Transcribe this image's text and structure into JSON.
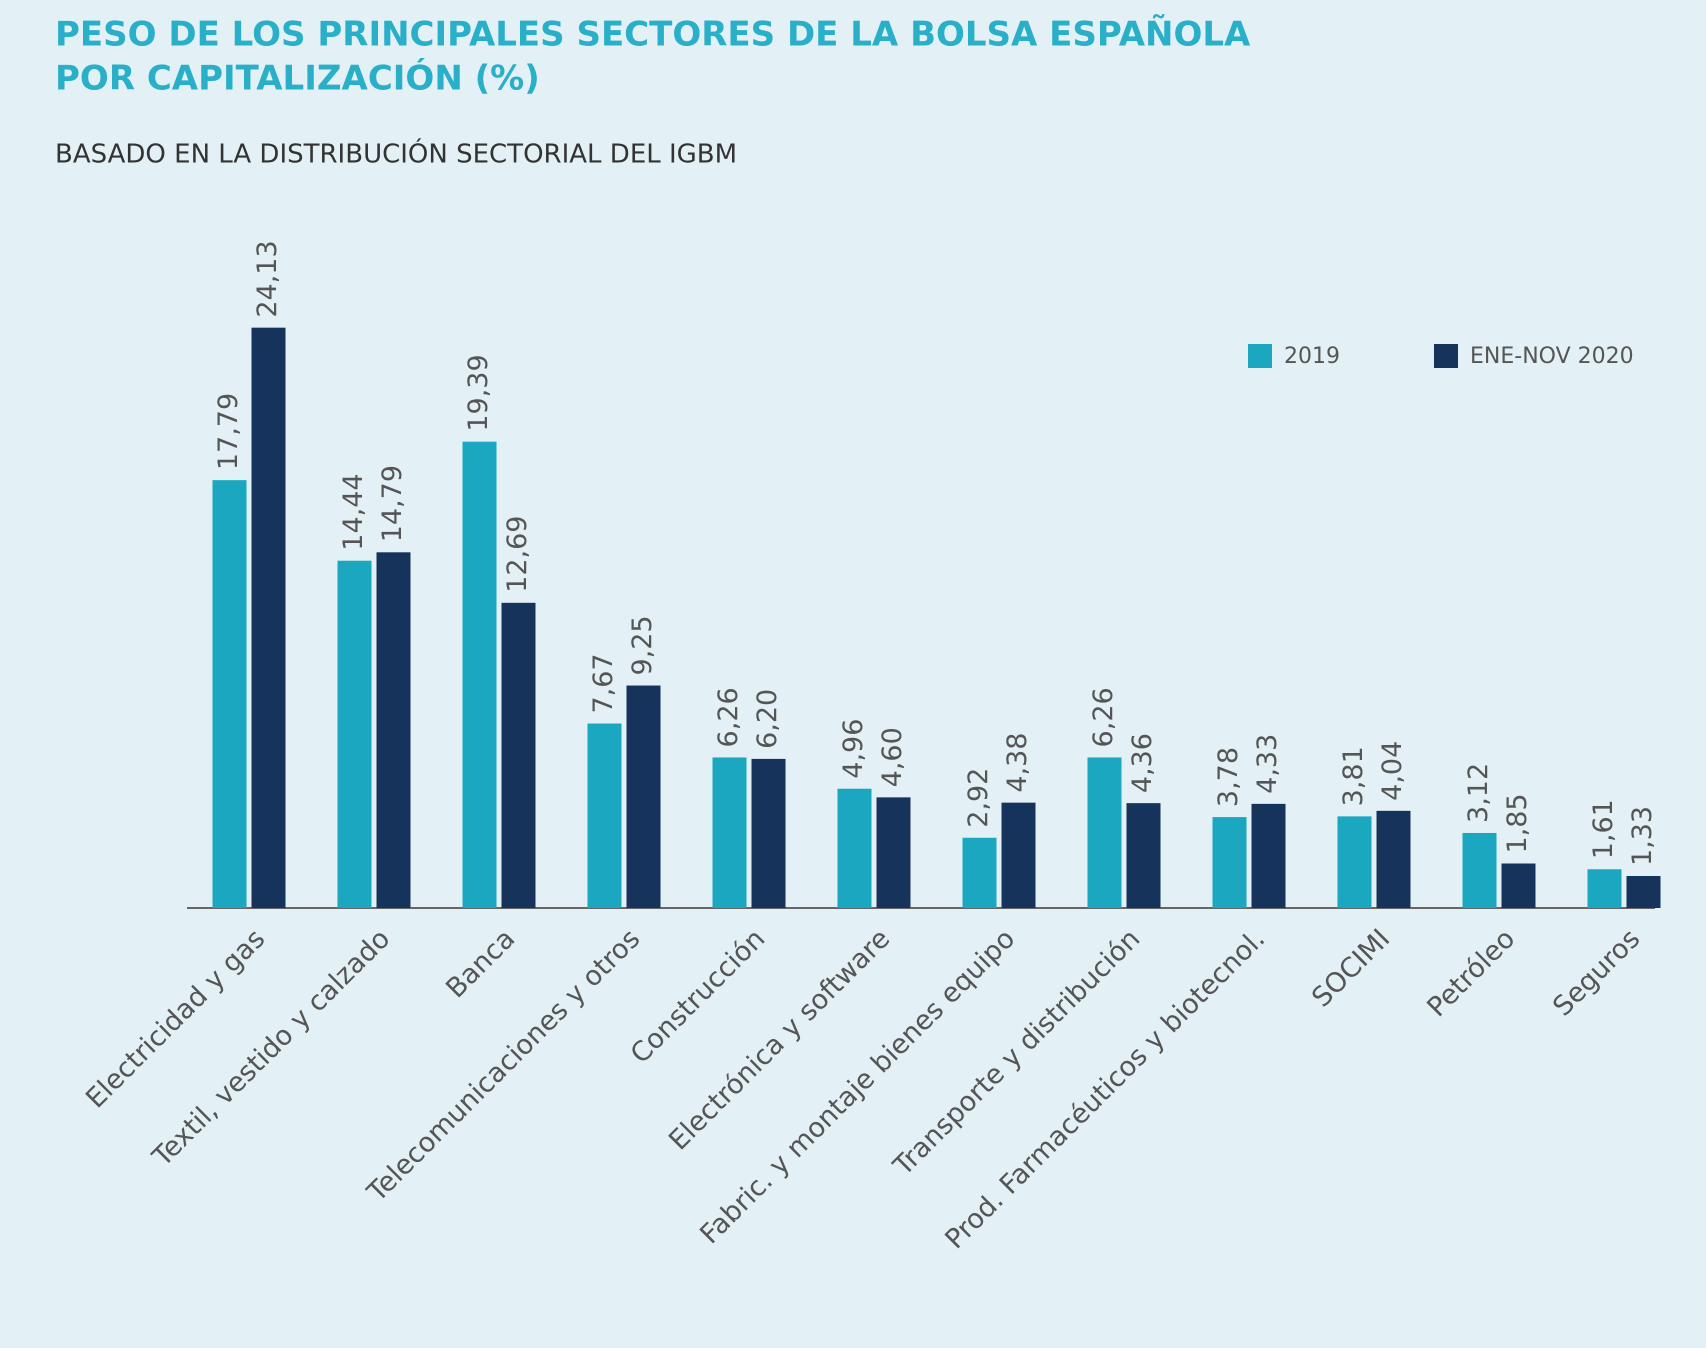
{
  "chart_data": {
    "type": "bar",
    "title": [
      "PESO DE LOS PRINCIPALES SECTORES DE LA BOLSA ESPAÑOLA",
      "POR CAPITALIZACIÓN (%)"
    ],
    "subtitle": "BASADO EN LA DISTRIBUCIÓN SECTORIAL DEL IGBM",
    "categories": [
      "Electricidad y gas",
      "Textil, vestido y calzado",
      "Banca",
      "Telecomunicaciones y otros",
      "Construcción",
      "Electrónica y software",
      "Fabric. y montaje bienes equipo",
      "Transporte y distribución",
      "Prod. Farmacéuticos y biotecnol.",
      "SOCIMI",
      "Petróleo",
      "Seguros"
    ],
    "series": [
      {
        "name": "2019",
        "color": "#1aa7bf",
        "values": [
          17.79,
          14.44,
          19.39,
          7.67,
          6.26,
          4.96,
          2.92,
          6.26,
          3.78,
          3.81,
          3.12,
          1.61
        ],
        "value_labels": [
          "17,79",
          "14,44",
          "19,39",
          "7,67",
          "6,26",
          "4,96",
          "2,92",
          "6,26",
          "3,78",
          "3,81",
          "3,12",
          "1,61"
        ]
      },
      {
        "name": "ENE-NOV 2020",
        "color": "#15335b",
        "values": [
          24.13,
          14.79,
          12.69,
          9.25,
          6.2,
          4.6,
          4.38,
          4.36,
          4.33,
          4.04,
          1.85,
          1.33
        ],
        "value_labels": [
          "24,13",
          "14,79",
          "12,69",
          "9,25",
          "6,20",
          "4,60",
          "4,38",
          "4,36",
          "4,33",
          "4,04",
          "1,85",
          "1,33"
        ]
      }
    ],
    "legend": "top-right"
  }
}
